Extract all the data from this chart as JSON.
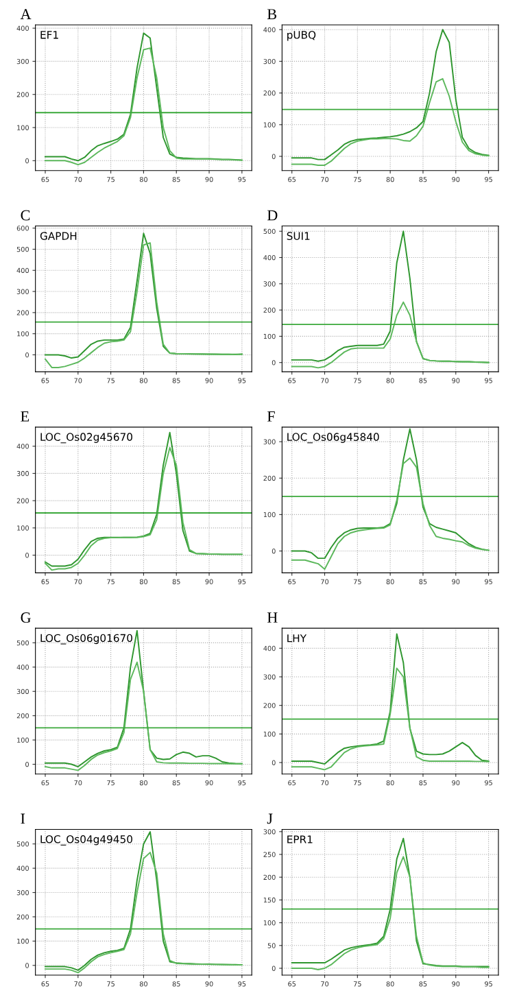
{
  "chart_data": [
    {
      "type": "line",
      "title": "A",
      "annotations": [
        "EF1"
      ],
      "x": [
        65,
        66,
        67,
        68,
        69,
        70,
        71,
        72,
        73,
        74,
        75,
        76,
        77,
        78,
        79,
        80,
        81,
        82,
        83,
        84,
        85,
        86,
        87,
        88,
        89,
        90,
        91,
        92,
        93,
        94,
        95
      ],
      "xlim": [
        63.5,
        96.5
      ],
      "xticks": [
        65,
        70,
        75,
        80,
        85,
        90,
        95
      ],
      "ylim": [
        -30,
        410
      ],
      "yticks": [
        0,
        100,
        200,
        300,
        400
      ],
      "grid": true,
      "ref_lines": [
        {
          "axis": "y",
          "value": 145,
          "color": "#3aa83a"
        }
      ],
      "series": [
        {
          "color": "#2e962e",
          "values": [
            12,
            12,
            12,
            12,
            5,
            0,
            10,
            30,
            45,
            52,
            58,
            65,
            80,
            140,
            280,
            385,
            370,
            220,
            70,
            20,
            10,
            8,
            7,
            6,
            6,
            6,
            5,
            4,
            4,
            3,
            2
          ]
        },
        {
          "color": "#5cb85c",
          "values": [
            0,
            0,
            0,
            0,
            -5,
            -12,
            -5,
            10,
            25,
            38,
            48,
            58,
            75,
            130,
            250,
            335,
            340,
            250,
            100,
            30,
            8,
            5,
            5,
            5,
            5,
            5,
            4,
            3,
            3,
            2,
            1
          ]
        }
      ]
    },
    {
      "type": "line",
      "title": "B",
      "annotations": [
        "pUBQ"
      ],
      "x": [
        65,
        66,
        67,
        68,
        69,
        70,
        71,
        72,
        73,
        74,
        75,
        76,
        77,
        78,
        79,
        80,
        81,
        82,
        83,
        84,
        85,
        86,
        87,
        88,
        89,
        90,
        91,
        92,
        93,
        94,
        95
      ],
      "xlim": [
        63.5,
        96.5
      ],
      "xticks": [
        65,
        70,
        75,
        80,
        85,
        90,
        95
      ],
      "ylim": [
        -45,
        415
      ],
      "yticks": [
        0,
        100,
        200,
        300,
        400
      ],
      "grid": true,
      "ref_lines": [
        {
          "axis": "y",
          "value": 148,
          "color": "#3aa83a"
        }
      ],
      "series": [
        {
          "color": "#2e962e",
          "values": [
            -5,
            -5,
            -5,
            -5,
            -10,
            -10,
            5,
            20,
            38,
            48,
            53,
            55,
            57,
            58,
            60,
            62,
            65,
            70,
            78,
            90,
            110,
            200,
            330,
            400,
            360,
            180,
            60,
            25,
            12,
            6,
            3
          ]
        },
        {
          "color": "#5cb85c",
          "values": [
            -25,
            -25,
            -25,
            -25,
            -28,
            -28,
            -15,
            5,
            25,
            40,
            48,
            52,
            55,
            55,
            56,
            56,
            55,
            50,
            48,
            65,
            95,
            170,
            235,
            245,
            190,
            110,
            45,
            18,
            8,
            4,
            2
          ]
        }
      ]
    },
    {
      "type": "line",
      "title": "C",
      "annotations": [
        "GAPDH"
      ],
      "x": [
        65,
        66,
        67,
        68,
        69,
        70,
        71,
        72,
        73,
        74,
        75,
        76,
        77,
        78,
        79,
        80,
        81,
        82,
        83,
        84,
        85,
        86,
        87,
        88,
        89,
        90,
        91,
        92,
        93,
        94,
        95
      ],
      "xlim": [
        63.5,
        96.5
      ],
      "xticks": [
        65,
        70,
        75,
        80,
        85,
        90,
        95
      ],
      "ylim": [
        -80,
        610
      ],
      "yticks": [
        0,
        100,
        200,
        300,
        400,
        500,
        600
      ],
      "grid": true,
      "ref_lines": [
        {
          "axis": "y",
          "value": 155,
          "color": "#3aa83a"
        }
      ],
      "series": [
        {
          "color": "#2e962e",
          "values": [
            0,
            0,
            0,
            -5,
            -15,
            -10,
            20,
            50,
            65,
            70,
            70,
            70,
            75,
            130,
            350,
            575,
            480,
            220,
            40,
            8,
            6,
            5,
            5,
            4,
            4,
            3,
            3,
            2,
            2,
            2,
            3
          ]
        },
        {
          "color": "#5cb85c",
          "values": [
            -20,
            -60,
            -60,
            -55,
            -45,
            -35,
            -15,
            10,
            35,
            55,
            62,
            65,
            70,
            110,
            300,
            520,
            530,
            250,
            50,
            8,
            5,
            5,
            4,
            4,
            3,
            3,
            2,
            2,
            2,
            1,
            3
          ]
        }
      ]
    },
    {
      "type": "line",
      "title": "D",
      "annotations": [
        "SUI1"
      ],
      "x": [
        65,
        66,
        67,
        68,
        69,
        70,
        71,
        72,
        73,
        74,
        75,
        76,
        77,
        78,
        79,
        80,
        81,
        82,
        83,
        84,
        85,
        86,
        87,
        88,
        89,
        90,
        91,
        92,
        93,
        94,
        95
      ],
      "xlim": [
        63.5,
        96.5
      ],
      "xticks": [
        65,
        70,
        75,
        80,
        85,
        90,
        95
      ],
      "ylim": [
        -35,
        520
      ],
      "yticks": [
        0,
        100,
        200,
        300,
        400,
        500
      ],
      "grid": true,
      "ref_lines": [
        {
          "axis": "y",
          "value": 145,
          "color": "#3aa83a"
        }
      ],
      "series": [
        {
          "color": "#2e962e",
          "values": [
            10,
            10,
            10,
            10,
            5,
            10,
            25,
            45,
            58,
            62,
            65,
            65,
            65,
            65,
            70,
            120,
            380,
            500,
            320,
            80,
            15,
            8,
            6,
            5,
            5,
            4,
            3,
            3,
            2,
            1,
            0
          ]
        },
        {
          "color": "#5cb85c",
          "values": [
            -15,
            -15,
            -15,
            -15,
            -20,
            -15,
            0,
            20,
            40,
            52,
            55,
            55,
            55,
            55,
            55,
            90,
            180,
            230,
            180,
            80,
            15,
            8,
            6,
            5,
            5,
            4,
            3,
            3,
            2,
            1,
            0
          ]
        }
      ]
    },
    {
      "type": "line",
      "title": "E",
      "annotations": [
        "LOC_Os02g45670"
      ],
      "x": [
        65,
        66,
        67,
        68,
        69,
        70,
        71,
        72,
        73,
        74,
        75,
        76,
        77,
        78,
        79,
        80,
        81,
        82,
        83,
        84,
        85,
        86,
        87,
        88,
        89,
        90,
        91,
        92,
        93,
        94,
        95
      ],
      "xlim": [
        63.5,
        96.5
      ],
      "xticks": [
        65,
        70,
        75,
        80,
        85,
        90,
        95
      ],
      "ylim": [
        -65,
        470
      ],
      "yticks": [
        0,
        100,
        200,
        300,
        400
      ],
      "grid": true,
      "ref_lines": [
        {
          "axis": "y",
          "value": 155,
          "color": "#3aa83a"
        }
      ],
      "series": [
        {
          "color": "#2e962e",
          "values": [
            -25,
            -40,
            -40,
            -40,
            -35,
            -15,
            20,
            50,
            62,
            65,
            65,
            65,
            65,
            65,
            66,
            70,
            80,
            150,
            330,
            450,
            300,
            90,
            15,
            6,
            5,
            4,
            4,
            3,
            3,
            3,
            3
          ]
        },
        {
          "color": "#5cb85c",
          "values": [
            -30,
            -55,
            -50,
            -50,
            -45,
            -30,
            0,
            35,
            55,
            62,
            64,
            64,
            65,
            65,
            65,
            68,
            75,
            130,
            300,
            395,
            330,
            120,
            20,
            6,
            5,
            4,
            4,
            3,
            3,
            3,
            3
          ]
        }
      ]
    },
    {
      "type": "line",
      "title": "F",
      "annotations": [
        "LOC_Os06g45840"
      ],
      "x": [
        65,
        66,
        67,
        68,
        69,
        70,
        71,
        72,
        73,
        74,
        75,
        76,
        77,
        78,
        79,
        80,
        81,
        82,
        83,
        84,
        85,
        86,
        87,
        88,
        89,
        90,
        91,
        92,
        93,
        94,
        95
      ],
      "xlim": [
        63.5,
        96.5
      ],
      "xticks": [
        65,
        70,
        75,
        80,
        85,
        90,
        95
      ],
      "ylim": [
        -60,
        340
      ],
      "yticks": [
        0,
        100,
        200,
        300
      ],
      "grid": true,
      "ref_lines": [
        {
          "axis": "y",
          "value": 150,
          "color": "#3aa83a"
        }
      ],
      "series": [
        {
          "color": "#2e962e",
          "values": [
            0,
            0,
            0,
            -5,
            -20,
            -20,
            10,
            35,
            50,
            58,
            62,
            63,
            63,
            63,
            65,
            75,
            130,
            250,
            335,
            250,
            120,
            75,
            65,
            60,
            55,
            50,
            35,
            20,
            10,
            5,
            2
          ]
        },
        {
          "color": "#5cb85c",
          "values": [
            -25,
            -25,
            -25,
            -30,
            -35,
            -50,
            -15,
            20,
            40,
            50,
            55,
            58,
            60,
            62,
            63,
            72,
            140,
            240,
            255,
            230,
            130,
            70,
            40,
            35,
            32,
            28,
            25,
            15,
            8,
            4,
            2
          ]
        }
      ]
    },
    {
      "type": "line",
      "title": "G",
      "annotations": [
        "LOC_Os06g01670"
      ],
      "x": [
        65,
        66,
        67,
        68,
        69,
        70,
        71,
        72,
        73,
        74,
        75,
        76,
        77,
        78,
        79,
        80,
        81,
        82,
        83,
        84,
        85,
        86,
        87,
        88,
        89,
        90,
        91,
        92,
        93,
        94,
        95
      ],
      "xlim": [
        63.5,
        96.5
      ],
      "xticks": [
        65,
        70,
        75,
        80,
        85,
        90,
        95
      ],
      "ylim": [
        -40,
        560
      ],
      "yticks": [
        0,
        100,
        200,
        300,
        400,
        500
      ],
      "grid": true,
      "ref_lines": [
        {
          "axis": "y",
          "value": 150,
          "color": "#3aa83a"
        }
      ],
      "series": [
        {
          "color": "#2e962e",
          "values": [
            5,
            5,
            5,
            5,
            0,
            -10,
            10,
            30,
            45,
            55,
            60,
            70,
            150,
            400,
            550,
            300,
            60,
            25,
            20,
            22,
            40,
            50,
            45,
            30,
            35,
            35,
            25,
            10,
            5,
            3,
            2
          ]
        },
        {
          "color": "#5cb85c",
          "values": [
            -10,
            -15,
            -15,
            -15,
            -20,
            -25,
            -5,
            20,
            38,
            48,
            55,
            65,
            130,
            350,
            420,
            300,
            60,
            10,
            6,
            5,
            5,
            5,
            4,
            4,
            4,
            3,
            3,
            3,
            2,
            2,
            2
          ]
        }
      ]
    },
    {
      "type": "line",
      "title": "H",
      "annotations": [
        "LHY"
      ],
      "x": [
        65,
        66,
        67,
        68,
        69,
        70,
        71,
        72,
        73,
        74,
        75,
        76,
        77,
        78,
        79,
        80,
        81,
        82,
        83,
        84,
        85,
        86,
        87,
        88,
        89,
        90,
        91,
        92,
        93,
        94,
        95
      ],
      "xlim": [
        63.5,
        96.5
      ],
      "xticks": [
        65,
        70,
        75,
        80,
        85,
        90,
        95
      ],
      "ylim": [
        -40,
        470
      ],
      "yticks": [
        0,
        100,
        200,
        300,
        400
      ],
      "grid": true,
      "ref_lines": [
        {
          "axis": "y",
          "value": 152,
          "color": "#3aa83a"
        }
      ],
      "series": [
        {
          "color": "#2e962e",
          "values": [
            5,
            5,
            5,
            5,
            0,
            -5,
            15,
            35,
            50,
            55,
            58,
            60,
            62,
            65,
            75,
            180,
            450,
            350,
            120,
            40,
            30,
            28,
            28,
            30,
            40,
            55,
            70,
            55,
            25,
            8,
            5
          ]
        },
        {
          "color": "#5cb85c",
          "values": [
            -15,
            -15,
            -15,
            -15,
            -20,
            -25,
            -15,
            10,
            35,
            48,
            55,
            58,
            60,
            62,
            65,
            170,
            330,
            300,
            120,
            20,
            8,
            5,
            5,
            5,
            5,
            5,
            5,
            5,
            4,
            4,
            3
          ]
        }
      ]
    },
    {
      "type": "line",
      "title": "I",
      "annotations": [
        "LOC_Os04g49450"
      ],
      "x": [
        65,
        66,
        67,
        68,
        69,
        70,
        71,
        72,
        73,
        74,
        75,
        76,
        77,
        78,
        79,
        80,
        81,
        82,
        83,
        84,
        85,
        86,
        87,
        88,
        89,
        90,
        91,
        92,
        93,
        94,
        95
      ],
      "xlim": [
        63.5,
        96.5
      ],
      "xticks": [
        65,
        70,
        75,
        80,
        85,
        90,
        95
      ],
      "ylim": [
        -40,
        560
      ],
      "yticks": [
        0,
        100,
        200,
        300,
        400,
        500
      ],
      "grid": true,
      "ref_lines": [
        {
          "axis": "y",
          "value": 150,
          "color": "#3aa83a"
        }
      ],
      "series": [
        {
          "color": "#2e962e",
          "values": [
            -5,
            -5,
            -5,
            -5,
            -10,
            -20,
            0,
            25,
            42,
            52,
            58,
            62,
            70,
            150,
            350,
            500,
            550,
            350,
            100,
            15,
            10,
            8,
            7,
            6,
            5,
            5,
            4,
            4,
            3,
            3,
            2
          ]
        },
        {
          "color": "#5cb85c",
          "values": [
            -15,
            -15,
            -15,
            -15,
            -20,
            -30,
            -10,
            15,
            35,
            45,
            52,
            58,
            65,
            130,
            300,
            440,
            465,
            380,
            130,
            20,
            8,
            7,
            6,
            5,
            5,
            4,
            4,
            3,
            3,
            2,
            2
          ]
        }
      ]
    },
    {
      "type": "line",
      "title": "J",
      "annotations": [
        "EPR1"
      ],
      "x": [
        65,
        66,
        67,
        68,
        69,
        70,
        71,
        72,
        73,
        74,
        75,
        76,
        77,
        78,
        79,
        80,
        81,
        82,
        83,
        84,
        85,
        86,
        87,
        88,
        89,
        90,
        91,
        92,
        93,
        94,
        95
      ],
      "xlim": [
        63.5,
        96.5
      ],
      "xticks": [
        65,
        70,
        75,
        80,
        85,
        90,
        95
      ],
      "ylim": [
        -15,
        305
      ],
      "yticks": [
        0,
        50,
        100,
        150,
        200,
        250,
        300
      ],
      "grid": true,
      "ref_lines": [
        {
          "axis": "y",
          "value": 130,
          "color": "#3aa83a"
        }
      ],
      "series": [
        {
          "color": "#2e962e",
          "values": [
            12,
            12,
            12,
            12,
            12,
            12,
            20,
            30,
            40,
            45,
            48,
            50,
            52,
            55,
            70,
            130,
            240,
            285,
            200,
            60,
            10,
            8,
            6,
            5,
            5,
            5,
            4,
            4,
            4,
            4,
            4
          ]
        },
        {
          "color": "#5cb85c",
          "values": [
            0,
            0,
            0,
            0,
            -3,
            0,
            8,
            20,
            32,
            40,
            45,
            48,
            50,
            52,
            65,
            110,
            210,
            245,
            200,
            70,
            12,
            7,
            5,
            4,
            4,
            4,
            3,
            3,
            3,
            2,
            2
          ]
        }
      ]
    }
  ]
}
